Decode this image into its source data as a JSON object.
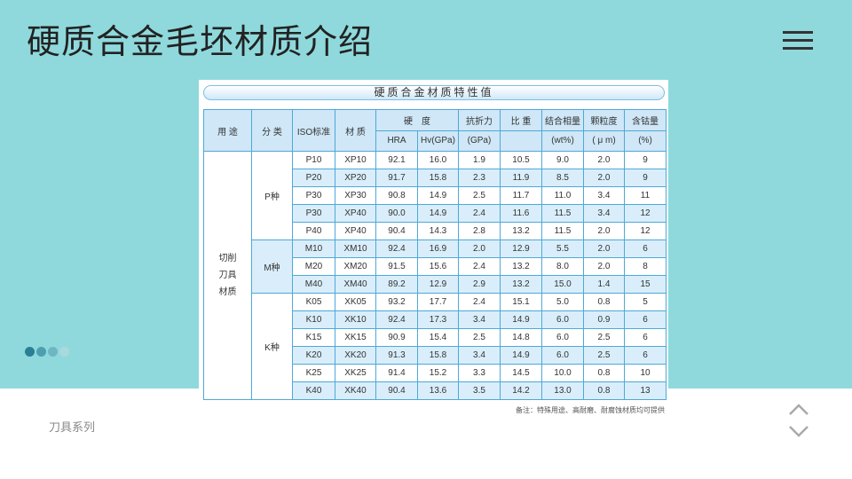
{
  "page": {
    "title": "硬质合金毛坯材质介绍",
    "footer": "刀具系列",
    "dot_colors": [
      "#2a7f96",
      "#4d9fb0",
      "#6fb5c2",
      "#a9d9dd"
    ],
    "bg_color": "#8fd9dc"
  },
  "panel": {
    "heading": "硬质合金材质特性值",
    "note": "备注：特殊用途、高耐磨、耐腐蚀材质均可提供",
    "headers": {
      "use": "用 途",
      "category": "分 类",
      "iso": "ISO标准",
      "material": "材 质",
      "hardness": "硬　度",
      "hra": "HRA",
      "hv": "Hv(GPa)",
      "strength": "抗折力",
      "strength_unit": "(GPa)",
      "density": "比 重",
      "binder": "结合相量",
      "binder_unit": "(wt%)",
      "grain": "颗粒度",
      "grain_unit": "( μ m)",
      "cobalt": "含钴量",
      "cobalt_unit": "(%)"
    },
    "use_label": [
      "切削",
      "刀具",
      "材质"
    ],
    "groups": [
      {
        "name": "P种",
        "rows": [
          [
            "P10",
            "XP10",
            "92.1",
            "16.0",
            "1.9",
            "10.5",
            "9.0",
            "2.0",
            "9"
          ],
          [
            "P20",
            "XP20",
            "91.7",
            "15.8",
            "2.3",
            "11.9",
            "8.5",
            "2.0",
            "9"
          ],
          [
            "P30",
            "XP30",
            "90.8",
            "14.9",
            "2.5",
            "11.7",
            "11.0",
            "3.4",
            "11"
          ],
          [
            "P30",
            "XP40",
            "90.0",
            "14.9",
            "2.4",
            "11.6",
            "11.5",
            "3.4",
            "12"
          ],
          [
            "P40",
            "XP40",
            "90.4",
            "14.3",
            "2.8",
            "13.2",
            "11.5",
            "2.0",
            "12"
          ]
        ]
      },
      {
        "name": "M种",
        "rows": [
          [
            "M10",
            "XM10",
            "92.4",
            "16.9",
            "2.0",
            "12.9",
            "5.5",
            "2.0",
            "6"
          ],
          [
            "M20",
            "XM20",
            "91.5",
            "15.6",
            "2.4",
            "13.2",
            "8.0",
            "2.0",
            "8"
          ],
          [
            "M40",
            "XM40",
            "89.2",
            "12.9",
            "2.9",
            "13.2",
            "15.0",
            "1.4",
            "15"
          ]
        ]
      },
      {
        "name": "K种",
        "rows": [
          [
            "K05",
            "XK05",
            "93.2",
            "17.7",
            "2.4",
            "15.1",
            "5.0",
            "0.8",
            "5"
          ],
          [
            "K10",
            "XK10",
            "92.4",
            "17.3",
            "3.4",
            "14.9",
            "6.0",
            "0.9",
            "6"
          ],
          [
            "K15",
            "XK15",
            "90.9",
            "15.4",
            "2.5",
            "14.8",
            "6.0",
            "2.5",
            "6"
          ],
          [
            "K20",
            "XK20",
            "91.3",
            "15.8",
            "3.4",
            "14.9",
            "6.0",
            "2.5",
            "6"
          ],
          [
            "K25",
            "XK25",
            "91.4",
            "15.2",
            "3.3",
            "14.5",
            "10.0",
            "0.8",
            "10"
          ],
          [
            "K40",
            "XK40",
            "90.4",
            "13.6",
            "3.5",
            "14.2",
            "13.0",
            "0.8",
            "13"
          ]
        ]
      }
    ]
  }
}
